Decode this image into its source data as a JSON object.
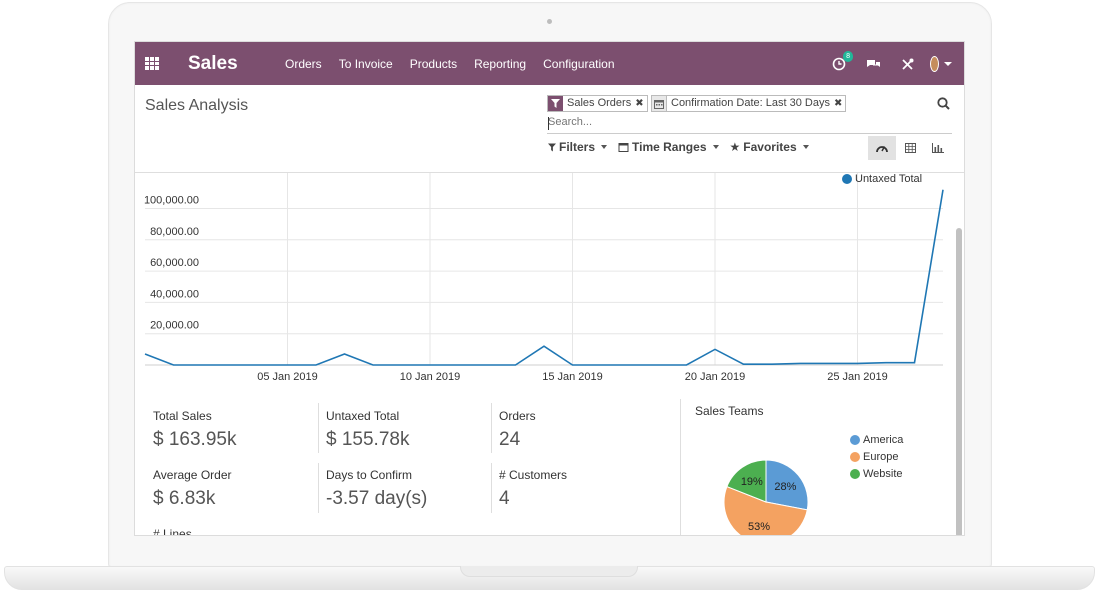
{
  "app": {
    "name": "Sales",
    "menu": [
      "Orders",
      "To Invoice",
      "Products",
      "Reporting",
      "Configuration"
    ],
    "activity_count": "8"
  },
  "control_panel": {
    "title": "Sales Analysis",
    "facets": [
      {
        "label": "Sales Orders",
        "icon": "filter-icon"
      },
      {
        "label": "Confirmation Date: Last 30 Days",
        "icon": "calendar-icon"
      }
    ],
    "search_placeholder": "Search...",
    "filters_label": "Filters",
    "time_ranges_label": "Time Ranges",
    "favorites_label": "Favorites",
    "views": [
      "dashboard-icon",
      "pivot-table-icon",
      "graph-icon"
    ]
  },
  "chart_data": {
    "type": "line",
    "series": [
      {
        "name": "Untaxed Total",
        "color": "#1f77b4",
        "x": [
          "31 Dec 2018",
          "01 Jan 2019",
          "02 Jan 2019",
          "03 Jan 2019",
          "04 Jan 2019",
          "05 Jan 2019",
          "06 Jan 2019",
          "07 Jan 2019",
          "08 Jan 2019",
          "09 Jan 2019",
          "10 Jan 2019",
          "11 Jan 2019",
          "12 Jan 2019",
          "13 Jan 2019",
          "14 Jan 2019",
          "15 Jan 2019",
          "16 Jan 2019",
          "17 Jan 2019",
          "18 Jan 2019",
          "19 Jan 2019",
          "20 Jan 2019",
          "21 Jan 2019",
          "22 Jan 2019",
          "23 Jan 2019",
          "24 Jan 2019",
          "25 Jan 2019",
          "26 Jan 2019",
          "27 Jan 2019",
          "28 Jan 2019"
        ],
        "values": [
          7000,
          0,
          0,
          0,
          0,
          0,
          0,
          7000,
          0,
          0,
          0,
          0,
          0,
          0,
          12000,
          0,
          0,
          0,
          0,
          0,
          10000,
          500,
          500,
          1000,
          1000,
          1000,
          1500,
          1500,
          112000
        ]
      }
    ],
    "y_ticks": [
      "20,000.00",
      "40,000.00",
      "60,000.00",
      "80,000.00",
      "100,000.00"
    ],
    "x_ticks": [
      "05 Jan 2019",
      "10 Jan 2019",
      "15 Jan 2019",
      "20 Jan 2019",
      "25 Jan 2019"
    ],
    "ylim": [
      0,
      115000
    ],
    "grid": true,
    "legend": "top-right"
  },
  "kpis": [
    {
      "label": "Total Sales",
      "value": "$ 163.95k"
    },
    {
      "label": "Untaxed Total",
      "value": "$ 155.78k"
    },
    {
      "label": "Orders",
      "value": "24"
    },
    {
      "label": "Average Order",
      "value": "$ 6.83k"
    },
    {
      "label": "Days to Confirm",
      "value": "-3.57 day(s)"
    },
    {
      "label": "# Customers",
      "value": "4"
    },
    {
      "label": "# Lines",
      "value": ""
    }
  ],
  "pie": {
    "title": "Sales Teams",
    "slices": [
      {
        "label": "America",
        "value": 28,
        "text": "28%",
        "color": "#5b9bd5"
      },
      {
        "label": "Europe",
        "value": 53,
        "text": "53%",
        "color": "#f4a261"
      },
      {
        "label": "Website",
        "value": 19,
        "text": "19%",
        "color": "#4caf50"
      }
    ]
  }
}
